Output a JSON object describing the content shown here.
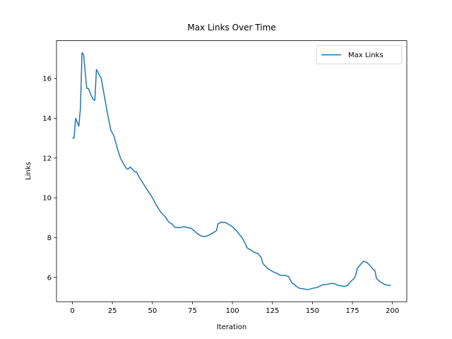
{
  "chart_data": {
    "type": "line",
    "title": "Max Links Over Time",
    "x_label": "Iteration",
    "y_label": "Links",
    "x": [
      0,
      1,
      2,
      3,
      4,
      5,
      6,
      7,
      8,
      9,
      10,
      11,
      12,
      13,
      14,
      15,
      16,
      18,
      20,
      22,
      24,
      26,
      28,
      30,
      32,
      34,
      35,
      36,
      38,
      39,
      40,
      42,
      44,
      46,
      48,
      50,
      52,
      55,
      58,
      60,
      62,
      64,
      66,
      68,
      70,
      72,
      74,
      76,
      78,
      80,
      82,
      84,
      86,
      88,
      90,
      91,
      93,
      96,
      100,
      103,
      106,
      108,
      109,
      112,
      114,
      116,
      118,
      119,
      122,
      125,
      128,
      130,
      133,
      135,
      137,
      140,
      142,
      145,
      147,
      150,
      153,
      156,
      159,
      162,
      164,
      166,
      168,
      170,
      172,
      174,
      176,
      177,
      178,
      180,
      182,
      184,
      186,
      188,
      189,
      190,
      192,
      194,
      196,
      199
    ],
    "series": [
      {
        "name": "Max Links",
        "color": "#1f77b4",
        "values": [
          13.0,
          13.0,
          14.0,
          13.8,
          13.6,
          14.5,
          17.3,
          17.2,
          16.3,
          15.5,
          15.5,
          15.3,
          15.1,
          14.95,
          14.9,
          16.45,
          16.3,
          16.0,
          15.1,
          14.2,
          13.4,
          13.1,
          12.5,
          12.0,
          11.7,
          11.45,
          11.45,
          11.55,
          11.4,
          11.3,
          11.3,
          11.0,
          10.75,
          10.5,
          10.25,
          10.0,
          9.7,
          9.3,
          9.05,
          8.8,
          8.7,
          8.52,
          8.5,
          8.52,
          8.55,
          8.5,
          8.48,
          8.35,
          8.2,
          8.1,
          8.05,
          8.08,
          8.15,
          8.25,
          8.35,
          8.7,
          8.78,
          8.75,
          8.55,
          8.3,
          8.0,
          7.7,
          7.5,
          7.35,
          7.25,
          7.2,
          7.0,
          6.7,
          6.45,
          6.3,
          6.2,
          6.1,
          6.1,
          6.05,
          5.75,
          5.55,
          5.45,
          5.42,
          5.38,
          5.45,
          5.5,
          5.62,
          5.65,
          5.7,
          5.68,
          5.6,
          5.58,
          5.55,
          5.6,
          5.8,
          5.95,
          6.1,
          6.45,
          6.65,
          6.82,
          6.75,
          6.6,
          6.4,
          6.35,
          5.95,
          5.8,
          5.7,
          5.62,
          5.6
        ]
      }
    ],
    "xlim": [
      -9.95,
      208.95
    ],
    "ylim": [
      4.78,
      17.9
    ],
    "xticks": [
      0,
      25,
      50,
      75,
      100,
      125,
      150,
      175,
      200
    ],
    "yticks": [
      6,
      8,
      10,
      12,
      14,
      16
    ],
    "legend": "upper right"
  }
}
